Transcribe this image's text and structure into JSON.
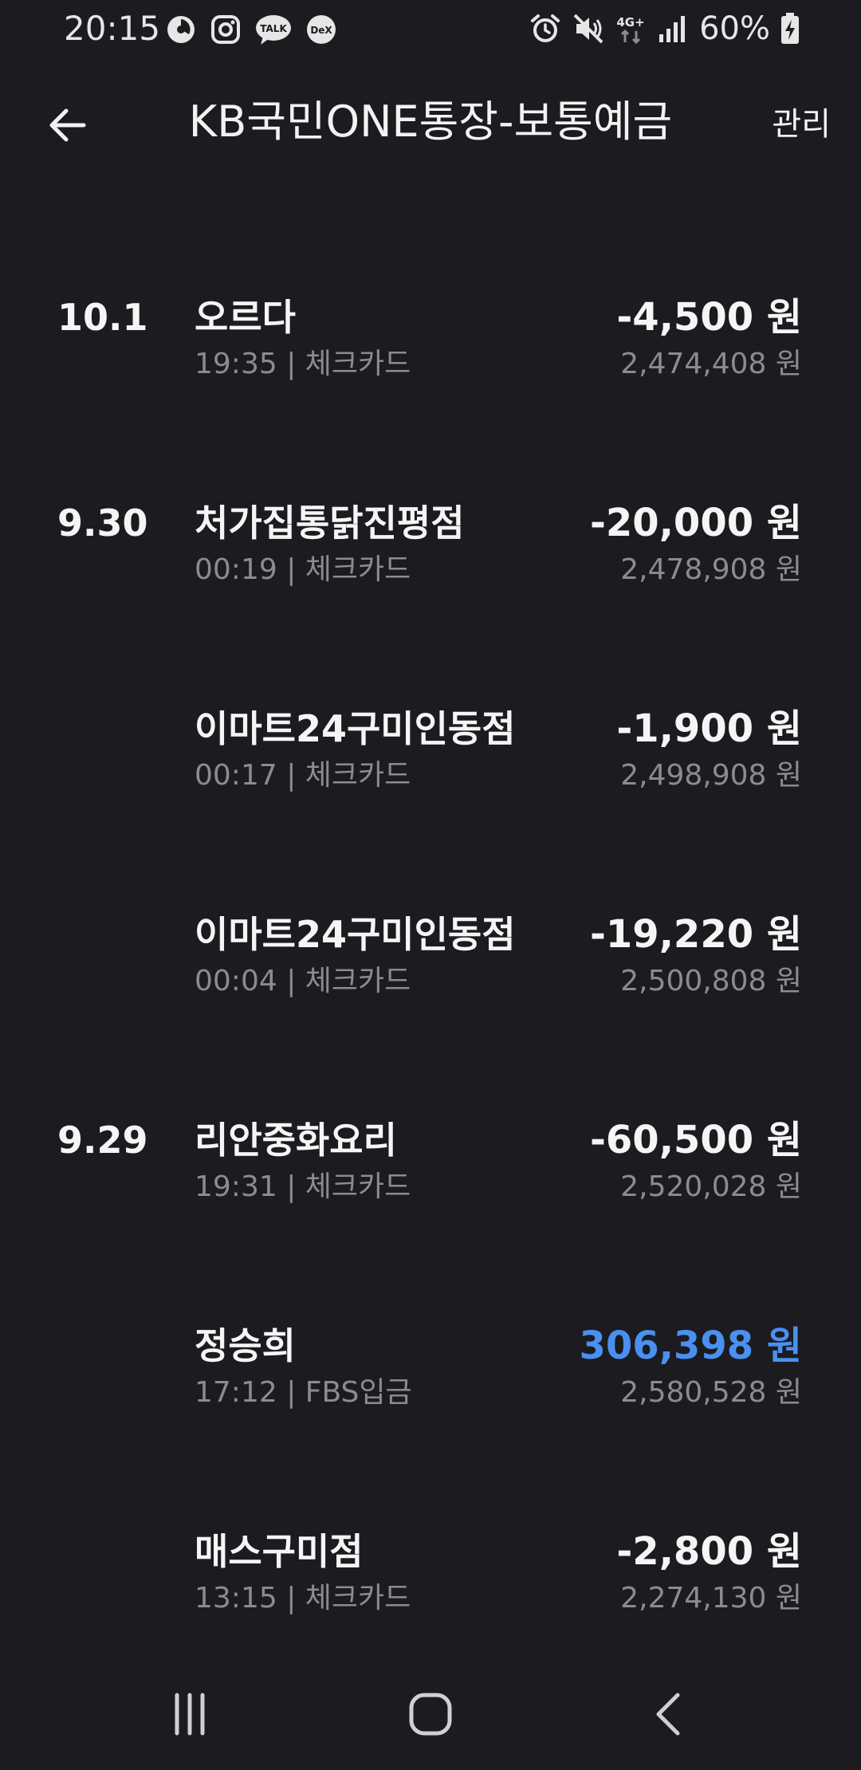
{
  "status_bar": {
    "time": "20:15",
    "battery": "60%",
    "network": "4G+",
    "left_icons": [
      "data-saver-icon",
      "instagram-icon",
      "kakaotalk-icon",
      "dex-icon"
    ],
    "right_icons": [
      "alarm-icon",
      "mute-icon",
      "network-4g-icon",
      "signal-icon",
      "battery-charging-icon"
    ],
    "talk_label": "TALK",
    "dex_label": "DeX"
  },
  "header": {
    "title": "KB국민ONE통장-보통예금",
    "manage_label": "관리"
  },
  "transactions": [
    {
      "date": "10.1",
      "merchant": "오르다",
      "meta": "19:35 | 체크카드",
      "amount": "-4,500 원",
      "balance": "2,474,408 원",
      "type": "withdrawal"
    },
    {
      "date": "9.30",
      "merchant": "처가집통닭진평점",
      "meta": "00:19 | 체크카드",
      "amount": "-20,000 원",
      "balance": "2,478,908 원",
      "type": "withdrawal"
    },
    {
      "date": "",
      "merchant": "이마트24구미인동점",
      "meta": "00:17 | 체크카드",
      "amount": "-1,900 원",
      "balance": "2,498,908 원",
      "type": "withdrawal"
    },
    {
      "date": "",
      "merchant": "이마트24구미인동점",
      "meta": "00:04 | 체크카드",
      "amount": "-19,220 원",
      "balance": "2,500,808 원",
      "type": "withdrawal"
    },
    {
      "date": "9.29",
      "merchant": "리안중화요리",
      "meta": "19:31 | 체크카드",
      "amount": "-60,500 원",
      "balance": "2,520,028 원",
      "type": "withdrawal"
    },
    {
      "date": "",
      "merchant": "정승희",
      "meta": "17:12 | FBS입금",
      "amount": "306,398 원",
      "balance": "2,580,528 원",
      "type": "deposit"
    },
    {
      "date": "",
      "merchant": "매스구미점",
      "meta": "13:15 | 체크카드",
      "amount": "-2,800 원",
      "balance": "2,274,130 원",
      "type": "withdrawal"
    }
  ],
  "colors": {
    "background": "#1b1b20",
    "deposit": "#4a90f0",
    "secondary_text": "#8b8b90"
  }
}
